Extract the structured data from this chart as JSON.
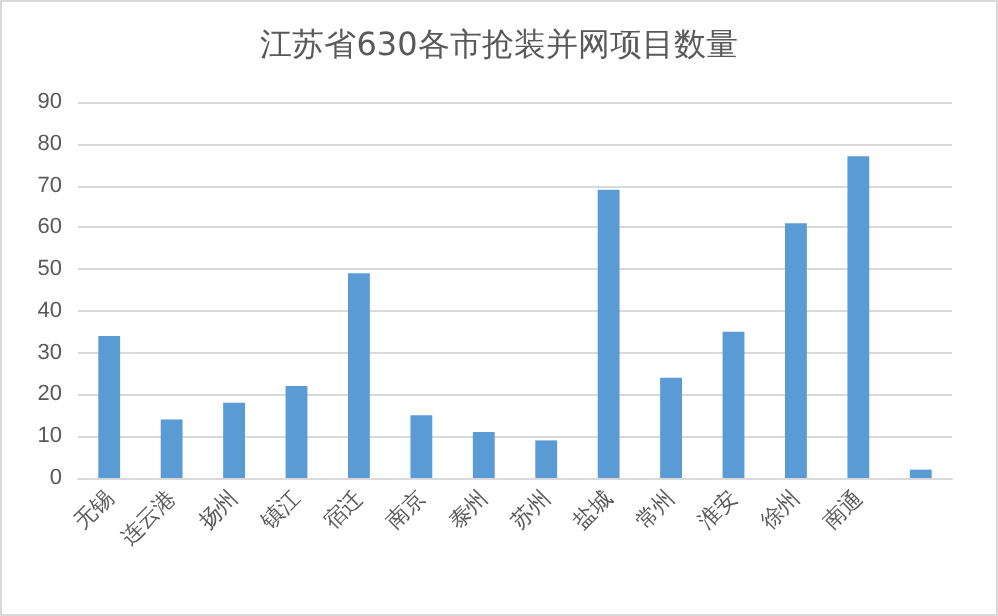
{
  "chart_data": {
    "type": "bar",
    "title": "江苏省630各市抢装并网项目数量",
    "categories": [
      "无锡",
      "连云港",
      "扬州",
      "镇江",
      "宿迁",
      "南京",
      "泰州",
      "苏州",
      "盐城",
      "常州",
      "淮安",
      "徐州",
      "南通",
      null
    ],
    "values": [
      34,
      14,
      18,
      22,
      49,
      15,
      11,
      9,
      69,
      24,
      35,
      61,
      77,
      2
    ],
    "color": "#5b9bd5",
    "ylim": [
      0,
      90
    ],
    "yticks": [
      0,
      10,
      20,
      30,
      40,
      50,
      60,
      70,
      80,
      90
    ],
    "grid": "y"
  }
}
